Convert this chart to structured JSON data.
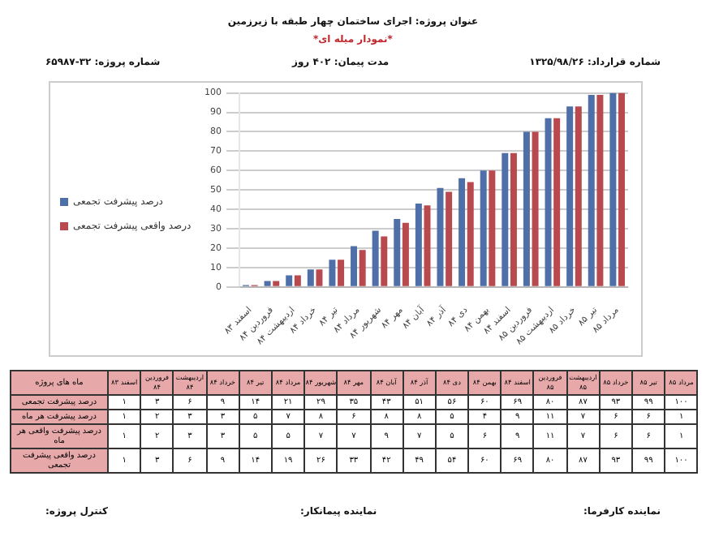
{
  "chart_data": [
    {
      "type": "bar",
      "title": "عنوان پروژه: اجرای ساختمان چهار طبقه با زیرزمین",
      "subtitle": "*نمودار میله ای*",
      "annotations": [
        "شماره قرارداد: ۱۳۲۵/۹۸/۲۶",
        "مدت پیمان: ۴۰۲ روز",
        "شماره پروژه: ۳۲-۶۵۹۸۷",
        "نماینده کارفرما:",
        "نماینده پیمانکار:",
        "کنترل پروژه:"
      ],
      "categories": [
        "اسفند ۸۳",
        "فروردین ۸۴",
        "اردیبهشت ۸۴",
        "خرداد ۸۴",
        "تیر ۸۴",
        "مرداد ۸۴",
        "شهریور ۸۴",
        "مهر ۸۴",
        "آبان ۸۴",
        "آذر ۸۴",
        "دی ۸۴",
        "بهمن ۸۴",
        "اسفند ۸۴",
        "فروردین ۸۵",
        "اردیبهشت ۸۵",
        "خرداد ۸۵",
        "تیر ۸۵",
        "مرداد ۸۵"
      ],
      "series": [
        {
          "name": "درصد پیشرفت تجمعی",
          "color": "#4f6fa8",
          "values": [
            1,
            3,
            6,
            9,
            14,
            21,
            29,
            35,
            43,
            51,
            56,
            60,
            69,
            80,
            87,
            93,
            99,
            100
          ]
        },
        {
          "name": "درصد واقعی پیشرفت تجمعی",
          "color": "#b84a4f",
          "values": [
            1,
            3,
            6,
            9,
            14,
            19,
            26,
            33,
            42,
            49,
            54,
            60,
            69,
            80,
            87,
            93,
            99,
            100
          ]
        }
      ],
      "ylim": [
        0,
        100
      ],
      "yticks": [
        0,
        10,
        20,
        30,
        40,
        50,
        60,
        70,
        80,
        90,
        100
      ],
      "grid": "y",
      "legend": "left"
    },
    {
      "type": "other",
      "xlabel": "ماه های پروژه",
      "categories": [
        "اسفند ۸۳",
        "فروردین ۸۴",
        "اردیبهشت ۸۴",
        "خرداد ۸۴",
        "تیر ۸۴",
        "مرداد ۸۴",
        "شهریور ۸۴",
        "مهر ۸۴",
        "آبان ۸۴",
        "آذر ۸۴",
        "دی ۸۴",
        "بهمن ۸۴",
        "اسفند ۸۴",
        "فروردین ۸۵",
        "اردیبهشت ۸۵",
        "خرداد ۸۵",
        "تیر ۸۵",
        "مرداد ۸۵"
      ],
      "series": [
        {
          "name": "درصد پیشرفت تجمعی",
          "values": [
            1,
            3,
            6,
            9,
            14,
            21,
            29,
            35,
            43,
            51,
            56,
            60,
            69,
            80,
            87,
            93,
            99,
            100
          ],
          "value_labels": [
            "۱",
            "۳",
            "۶",
            "۹",
            "۱۴",
            "۲۱",
            "۲۹",
            "۳۵",
            "۴۳",
            "۵۱",
            "۵۶",
            "۶۰",
            "۶۹",
            "۸۰",
            "۸۷",
            "۹۳",
            "۹۹",
            "۱۰۰"
          ]
        },
        {
          "name": "درصد پیشرفت هر ماه",
          "values": [
            1,
            2,
            3,
            3,
            5,
            7,
            8,
            6,
            8,
            8,
            5,
            4,
            9,
            11,
            7,
            6,
            6,
            1
          ],
          "value_labels": [
            "۱",
            "۲",
            "۳",
            "۳",
            "۵",
            "۷",
            "۸",
            "۶",
            "۸",
            "۸",
            "۵",
            "۴",
            "۹",
            "۱۱",
            "۷",
            "۶",
            "۶",
            "۱"
          ]
        },
        {
          "name": "درصد پیشرفت واقعی هر ماه",
          "values": [
            1,
            2,
            3,
            3,
            5,
            5,
            7,
            7,
            9,
            7,
            5,
            6,
            9,
            11,
            7,
            6,
            6,
            1
          ],
          "value_labels": [
            "۱",
            "۲",
            "۳",
            "۳",
            "۵",
            "۵",
            "۷",
            "۷",
            "۹",
            "۷",
            "۵",
            "۶",
            "۹",
            "۱۱",
            "۷",
            "۶",
            "۶",
            "۱"
          ]
        },
        {
          "name": "درصد واقعی پیشرفت تجمعی",
          "values": [
            1,
            3,
            6,
            9,
            14,
            19,
            26,
            33,
            42,
            49,
            54,
            60,
            69,
            80,
            87,
            93,
            99,
            100
          ],
          "value_labels": [
            "۱",
            "۳",
            "۶",
            "۹",
            "۱۴",
            "۱۹",
            "۲۶",
            "۳۳",
            "۴۲",
            "۴۹",
            "۵۴",
            "۶۰",
            "۶۹",
            "۸۰",
            "۸۷",
            "۹۳",
            "۹۹",
            "۱۰۰"
          ]
        }
      ]
    }
  ]
}
